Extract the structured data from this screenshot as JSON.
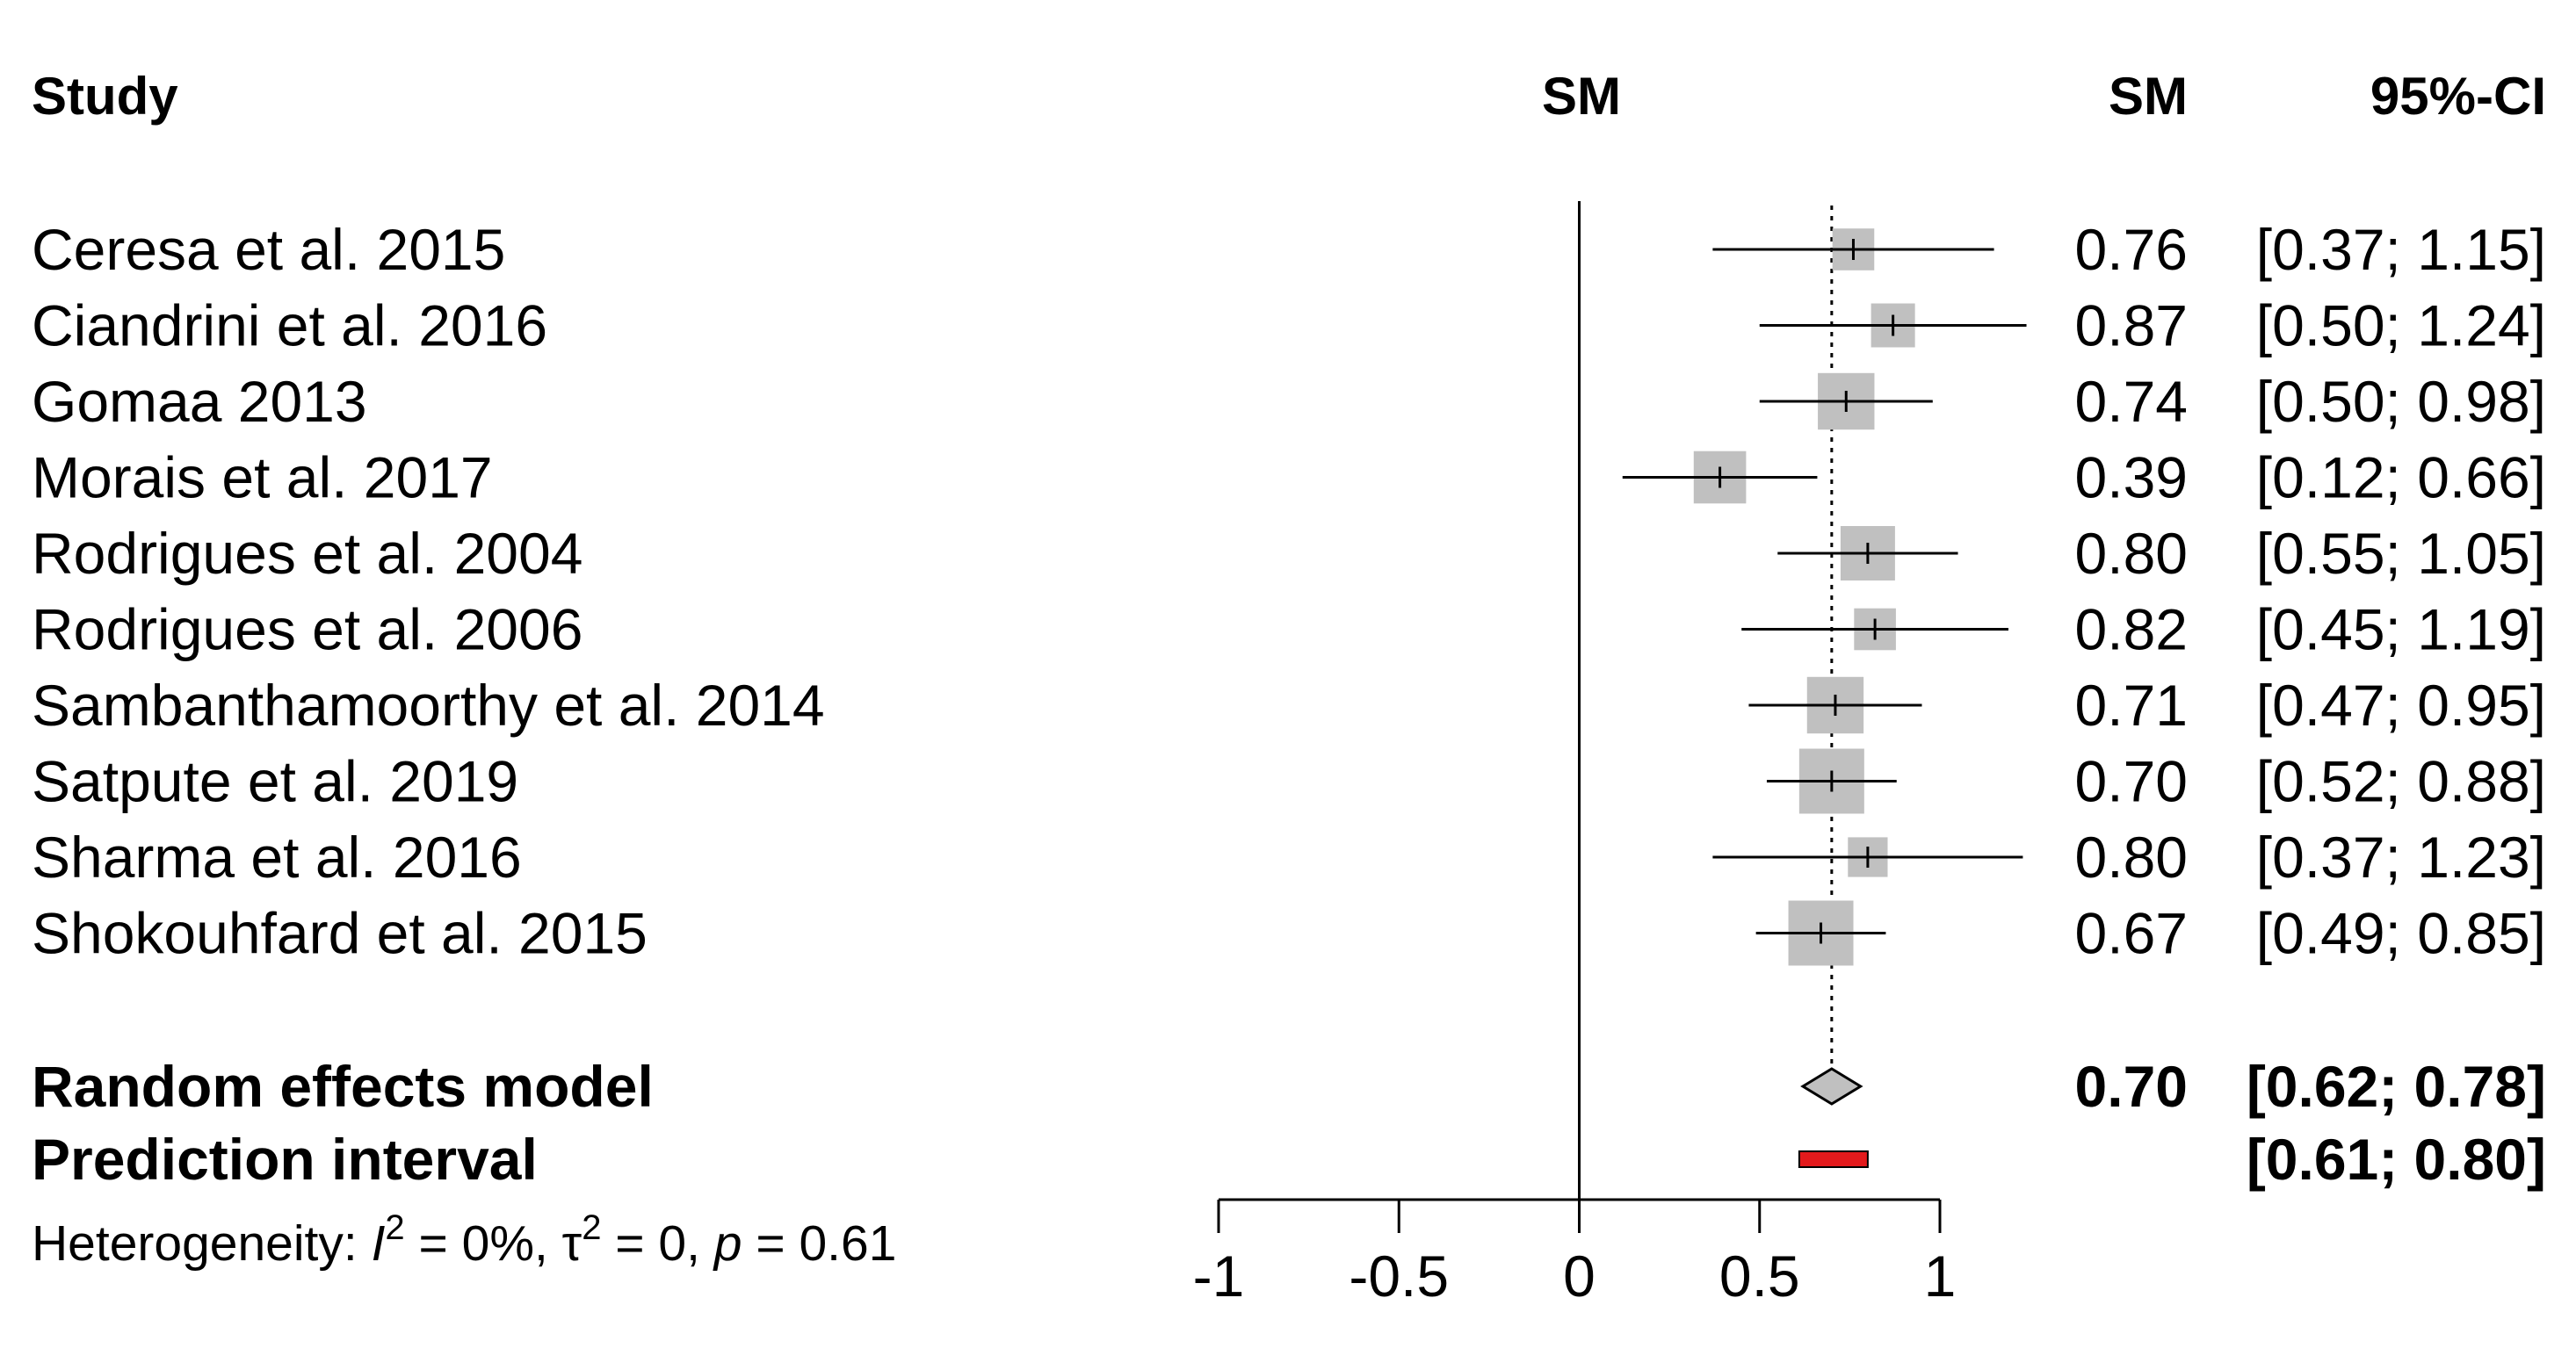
{
  "chart_data": {
    "type": "forest",
    "headers": {
      "study": "Study",
      "plot": "SM",
      "estimate": "SM",
      "ci": "95%-CI"
    },
    "studies": [
      {
        "name": "Ceresa et al. 2015",
        "est": 0.76,
        "lower": 0.37,
        "upper": 1.15,
        "est_label": "0.76",
        "ci_label": "[0.37; 1.15]",
        "weight": 0.45
      },
      {
        "name": "Ciandrini et al. 2016",
        "est": 0.87,
        "lower": 0.5,
        "upper": 1.24,
        "est_label": "0.87",
        "ci_label": "[0.50; 1.24]",
        "weight": 0.5
      },
      {
        "name": "Gomaa 2013",
        "est": 0.74,
        "lower": 0.5,
        "upper": 0.98,
        "est_label": "0.74",
        "ci_label": "[0.50; 0.98]",
        "weight": 0.8
      },
      {
        "name": "Morais et al. 2017",
        "est": 0.39,
        "lower": 0.12,
        "upper": 0.66,
        "est_label": "0.39",
        "ci_label": "[0.12; 0.66]",
        "weight": 0.7
      },
      {
        "name": "Rodrigues et al. 2004",
        "est": 0.8,
        "lower": 0.55,
        "upper": 1.05,
        "est_label": "0.80",
        "ci_label": "[0.55; 1.05]",
        "weight": 0.75
      },
      {
        "name": "Rodrigues et al. 2006",
        "est": 0.82,
        "lower": 0.45,
        "upper": 1.19,
        "est_label": "0.82",
        "ci_label": "[0.45; 1.19]",
        "weight": 0.45
      },
      {
        "name": "Sambanthamoorthy et al. 2014",
        "est": 0.71,
        "lower": 0.47,
        "upper": 0.95,
        "est_label": "0.71",
        "ci_label": "[0.47; 0.95]",
        "weight": 0.8
      },
      {
        "name": "Satpute et al. 2019",
        "est": 0.7,
        "lower": 0.52,
        "upper": 0.88,
        "est_label": "0.70",
        "ci_label": "[0.52; 0.88]",
        "weight": 1.0
      },
      {
        "name": "Sharma et al. 2016",
        "est": 0.8,
        "lower": 0.37,
        "upper": 1.23,
        "est_label": "0.80",
        "ci_label": "[0.37; 1.23]",
        "weight": 0.4
      },
      {
        "name": "Shokouhfard et al. 2015",
        "est": 0.67,
        "lower": 0.49,
        "upper": 0.85,
        "est_label": "0.67",
        "ci_label": "[0.49; 0.85]",
        "weight": 1.0
      }
    ],
    "summary": {
      "name": "Random effects model",
      "est": 0.7,
      "lower": 0.62,
      "upper": 0.78,
      "est_label": "0.70",
      "ci_label": "[0.62; 0.78]"
    },
    "prediction": {
      "name": "Prediction interval",
      "lower": 0.61,
      "upper": 0.8,
      "ci_label": "[0.61; 0.80]"
    },
    "heterogeneity": {
      "prefix": "Heterogeneity: ",
      "i2_symbol": "I",
      "i2_sup": "2",
      "i2_value": " = 0%, ",
      "tau2_symbol": "τ",
      "tau2_sup": "2",
      "tau2_value": " = 0, ",
      "p_symbol": "p",
      "p_value": " = 0.61"
    },
    "xlim": [
      -1,
      1
    ],
    "ticks": [
      {
        "value": -1,
        "label": "-1"
      },
      {
        "value": -0.5,
        "label": "-0.5"
      },
      {
        "value": 0,
        "label": "0"
      },
      {
        "value": 0.5,
        "label": "0.5"
      },
      {
        "value": 1,
        "label": "1"
      }
    ],
    "null_value": 0,
    "colors": {
      "square": "#c0c0c0",
      "diamond": "#c0c0c0",
      "prediction": "#e31a1c",
      "line": "#000000"
    }
  }
}
